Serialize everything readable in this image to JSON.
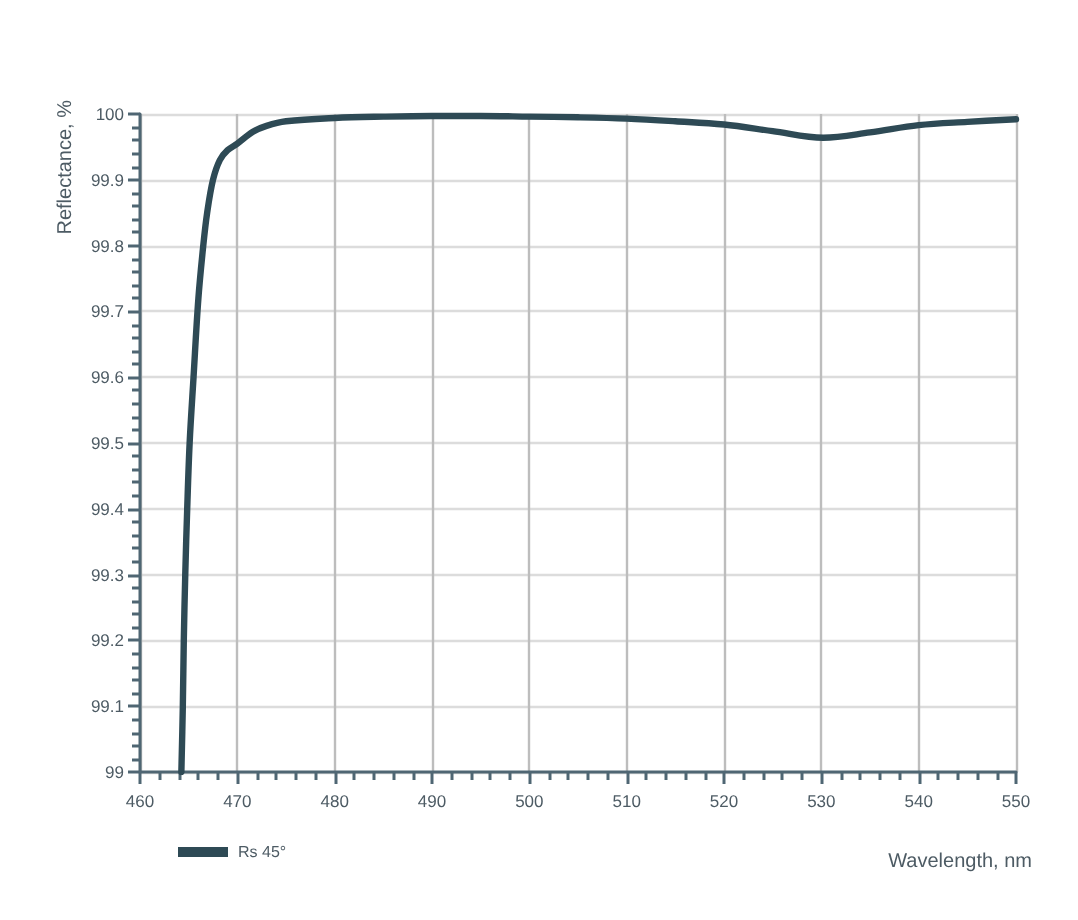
{
  "chart_data": {
    "type": "line",
    "xlabel": "Wavelength, nm",
    "ylabel": "Reflectance, %",
    "x": [
      464.25,
      464.4,
      464.5,
      464.65,
      464.85,
      465.1,
      465.5,
      466.0,
      466.5,
      466.9,
      467.5,
      468.2,
      469,
      470,
      471.6,
      473,
      475,
      480,
      485,
      490,
      495,
      500,
      505,
      510,
      515,
      520,
      525,
      530.2,
      535,
      540,
      545,
      550
    ],
    "series": [
      {
        "name": "Rs 45°",
        "color": "#2e4a55",
        "values": [
          99.0,
          99.1,
          99.2,
          99.3,
          99.4,
          99.5,
          99.6,
          99.72,
          99.8,
          99.85,
          99.9,
          99.93,
          99.945,
          99.955,
          99.973,
          99.982,
          99.989,
          99.994,
          99.996,
          99.997,
          99.997,
          99.996,
          99.995,
          99.993,
          99.989,
          99.984,
          99.974,
          99.964,
          99.972,
          99.983,
          99.988,
          99.992
        ]
      }
    ],
    "xlim": [
      460,
      550
    ],
    "xticks": [
      460,
      470,
      480,
      490,
      500,
      510,
      520,
      530,
      540,
      550
    ],
    "ylim": [
      99,
      100
    ],
    "yticks": [
      99,
      99.1,
      99.2,
      99.3,
      99.4,
      99.5,
      99.6,
      99.7,
      99.8,
      99.9,
      100
    ],
    "grid": true,
    "legend": "bottom left",
    "line_style": "solid"
  }
}
